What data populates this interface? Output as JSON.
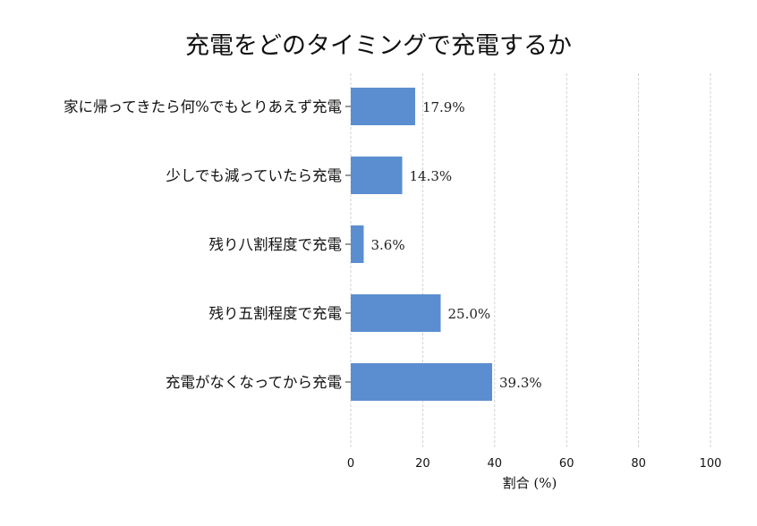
{
  "chart_data": {
    "type": "bar",
    "orientation": "horizontal",
    "title": "充電をどのタイミングで充電するか",
    "xlabel": "割合 (%)",
    "ylabel": "",
    "xlim": [
      0,
      100
    ],
    "xticks": [
      0,
      20,
      40,
      60,
      80,
      100
    ],
    "xtick_labels": [
      "0",
      "20",
      "40",
      "60",
      "80",
      "100"
    ],
    "grid": true,
    "categories": [
      "家に帰ってきたら何%でもとりあえず充電",
      "少しでも減っていたら充電",
      "残り八割程度で充電",
      "残り五割程度で充電",
      "充電がなくなってから充電"
    ],
    "values": [
      17.9,
      14.3,
      3.6,
      25.0,
      39.3
    ],
    "value_labels": [
      "17.9%",
      "14.3%",
      "3.6%",
      "25.0%",
      "39.3%"
    ],
    "bar_color": "#5b8ed0"
  }
}
